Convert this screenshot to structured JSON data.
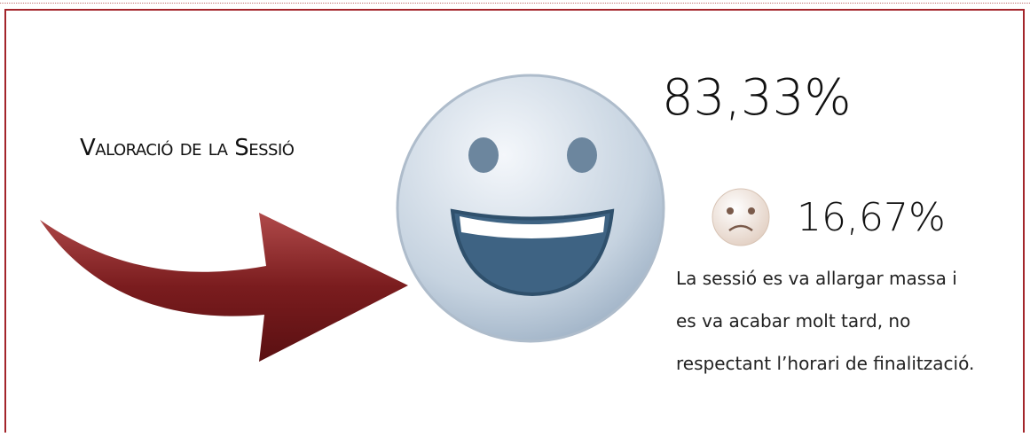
{
  "header": {
    "title": "Valoració de la Sessió"
  },
  "results": {
    "positive": "83,33%",
    "negative": "16,67%",
    "comment": "La sessió es va allargar massa i es va acabar molt tard, no respectant l’horari de finalització."
  }
}
